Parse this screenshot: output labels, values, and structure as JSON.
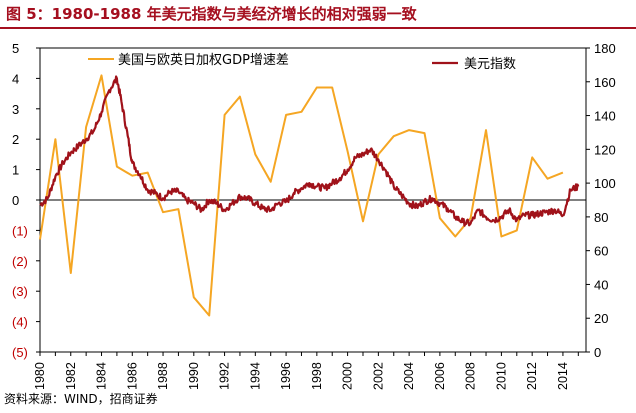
{
  "figure": {
    "title": "图 5：1980-1988 年美元指数与美经济增长的相对强弱一致",
    "source": "资料来源：WIND，招商证券"
  },
  "colors": {
    "title": "#a50f1f",
    "gdp_series": "#f5a623",
    "usd_series": "#a0121a",
    "negative_tick": "#c00000"
  },
  "chart_data": {
    "type": "line",
    "title": "",
    "xlabel": "",
    "x_ticks": [
      "1980",
      "1982",
      "1984",
      "1986",
      "1988",
      "1990",
      "1992",
      "1994",
      "1996",
      "1998",
      "2000",
      "2002",
      "2004",
      "2006",
      "2008",
      "2010",
      "2012",
      "2014"
    ],
    "left_axis": {
      "range": [
        -5,
        5
      ],
      "ticks": [
        5,
        4,
        3,
        2,
        1,
        0,
        -1,
        -2,
        -3,
        -4,
        -5
      ],
      "tick_labels": [
        "5",
        "4",
        "3",
        "2",
        "1",
        "0",
        "(1)",
        "(2)",
        "(3)",
        "(4)",
        "(5)"
      ]
    },
    "right_axis": {
      "range": [
        0,
        180
      ],
      "ticks": [
        180,
        160,
        140,
        120,
        100,
        80,
        60,
        40,
        20,
        0
      ],
      "tick_labels": [
        "180",
        "160",
        "140",
        "120",
        "100",
        "80",
        "60",
        "40",
        "20",
        "0"
      ]
    },
    "legend": [
      "美国与欧英日加权GDP增速差",
      "美元指数"
    ],
    "series": [
      {
        "name": "美国与欧英日加权GDP增速差",
        "axis": "left",
        "x": [
          1980,
          1981,
          1982,
          1983,
          1984,
          1985,
          1986,
          1987,
          1988,
          1989,
          1990,
          1991,
          1992,
          1993,
          1994,
          1995,
          1996,
          1997,
          1998,
          1999,
          2000,
          2001,
          2002,
          2003,
          2004,
          2005,
          2006,
          2007,
          2008,
          2009,
          2010,
          2011,
          2012,
          2013,
          2014
        ],
        "values": [
          -1.3,
          2.0,
          -2.4,
          2.4,
          4.1,
          1.1,
          0.8,
          0.9,
          -0.4,
          -0.3,
          -3.2,
          -3.8,
          2.8,
          3.4,
          1.5,
          0.6,
          2.8,
          2.9,
          3.7,
          3.7,
          1.6,
          -0.7,
          1.5,
          2.1,
          2.3,
          2.2,
          -0.6,
          -1.2,
          -0.6,
          2.3,
          -1.2,
          -1.0,
          1.4,
          0.7,
          0.9
        ]
      },
      {
        "name": "美元指数",
        "axis": "right",
        "x": [
          1980,
          1980.5,
          1981,
          1981.5,
          1982,
          1982.5,
          1983,
          1983.5,
          1984,
          1984.5,
          1985,
          1985.3,
          1985.7,
          1986,
          1986.5,
          1987,
          1987.5,
          1988,
          1988.5,
          1989,
          1989.5,
          1990,
          1990.5,
          1991,
          1991.5,
          1992,
          1992.5,
          1993,
          1993.5,
          1994,
          1994.5,
          1995,
          1995.5,
          1996,
          1996.5,
          1997,
          1997.5,
          1998,
          1998.5,
          1999,
          1999.5,
          2000,
          2000.5,
          2001,
          2001.5,
          2002,
          2002.5,
          2003,
          2003.5,
          2004,
          2004.5,
          2005,
          2005.5,
          2006,
          2006.5,
          2007,
          2007.5,
          2008,
          2008.5,
          2009,
          2009.5,
          2010,
          2010.5,
          2011,
          2011.5,
          2012,
          2012.5,
          2013,
          2013.5,
          2014,
          2014.5,
          2015
        ],
        "values": [
          87,
          91,
          104,
          112,
          118,
          122,
          126,
          131,
          142,
          155,
          162,
          148,
          128,
          112,
          105,
          96,
          94,
          91,
          95,
          95,
          90,
          88,
          84,
          90,
          88,
          84,
          88,
          92,
          91,
          88,
          85,
          84,
          88,
          89,
          94,
          97,
          100,
          98,
          97,
          100,
          103,
          108,
          115,
          117,
          120,
          114,
          107,
          98,
          93,
          88,
          86,
          89,
          91,
          88,
          85,
          80,
          77,
          76,
          84,
          80,
          78,
          80,
          84,
          78,
          81,
          81,
          82,
          83,
          84,
          81,
          96,
          98
        ]
      }
    ]
  }
}
